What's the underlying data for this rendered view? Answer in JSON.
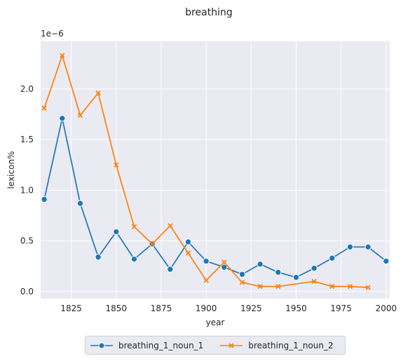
{
  "chart_data": {
    "type": "line",
    "title": "breathing",
    "xlabel": "year",
    "ylabel": "lexicon%",
    "y_scale_note": "1e−6",
    "xlim": [
      1808,
      2002
    ],
    "ylim": [
      -0.07,
      2.47
    ],
    "x_ticks": [
      1825,
      1850,
      1875,
      1900,
      1925,
      1950,
      1975,
      2000
    ],
    "y_ticks": [
      0.0,
      0.5,
      1.0,
      1.5,
      2.0
    ],
    "grid": true,
    "legend_position": "bottom-center",
    "series": [
      {
        "name": "breathing_1_noun_1",
        "color": "#1f77b4",
        "marker": "circle",
        "x": [
          1810,
          1820,
          1830,
          1840,
          1850,
          1860,
          1870,
          1880,
          1890,
          1900,
          1910,
          1920,
          1930,
          1940,
          1950,
          1960,
          1970,
          1980,
          1990,
          2000
        ],
        "y": [
          0.91,
          1.71,
          0.87,
          0.34,
          0.59,
          0.32,
          0.47,
          0.22,
          0.49,
          0.3,
          0.24,
          0.17,
          0.27,
          0.19,
          0.14,
          0.23,
          0.33,
          0.44,
          0.44,
          0.3
        ]
      },
      {
        "name": "breathing_1_noun_2",
        "color": "#ff7f0e",
        "marker": "x",
        "x": [
          1810,
          1820,
          1830,
          1840,
          1850,
          1860,
          1870,
          1880,
          1890,
          1900,
          1910,
          1920,
          1930,
          1940,
          1960,
          1970,
          1980,
          1990
        ],
        "y": [
          1.81,
          2.33,
          1.74,
          1.96,
          1.25,
          0.64,
          0.47,
          0.65,
          0.38,
          0.11,
          0.29,
          0.09,
          0.05,
          0.05,
          0.1,
          0.05,
          0.05,
          0.04
        ]
      }
    ]
  }
}
